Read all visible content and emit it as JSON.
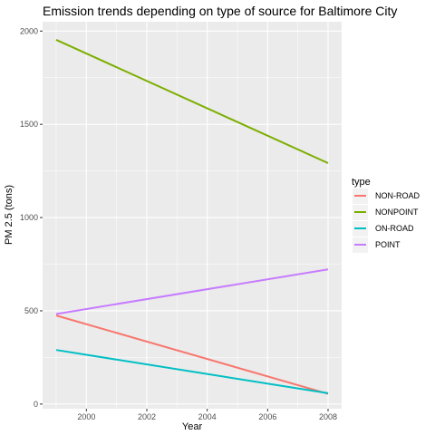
{
  "chart_data": {
    "type": "line",
    "title": "Emission trends depending on type of source for Baltimore City",
    "xlabel": "Year",
    "ylabel": "PM 2.5 (tons)",
    "x": [
      1999,
      2008
    ],
    "xlim": [
      1998.55,
      2008.45
    ],
    "ylim": [
      -25,
      2050
    ],
    "xticks": [
      2000,
      2002,
      2004,
      2006,
      2008
    ],
    "yticks": [
      0,
      500,
      1000,
      1500,
      2000
    ],
    "grid": true,
    "legend": {
      "title": "type",
      "position": "right"
    },
    "series": [
      {
        "name": "NON-ROAD",
        "color": "#F8766D",
        "values": [
          475,
          55
        ]
      },
      {
        "name": "NONPOINT",
        "color": "#7CAE00",
        "values": [
          1953,
          1292
        ]
      },
      {
        "name": "ON-ROAD",
        "color": "#00BFC4",
        "values": [
          290,
          58
        ]
      },
      {
        "name": "POINT",
        "color": "#C77CFF",
        "values": [
          483,
          722
        ]
      }
    ],
    "panel_background": "#EBEBEB",
    "grid_color": "#FFFFFF"
  }
}
